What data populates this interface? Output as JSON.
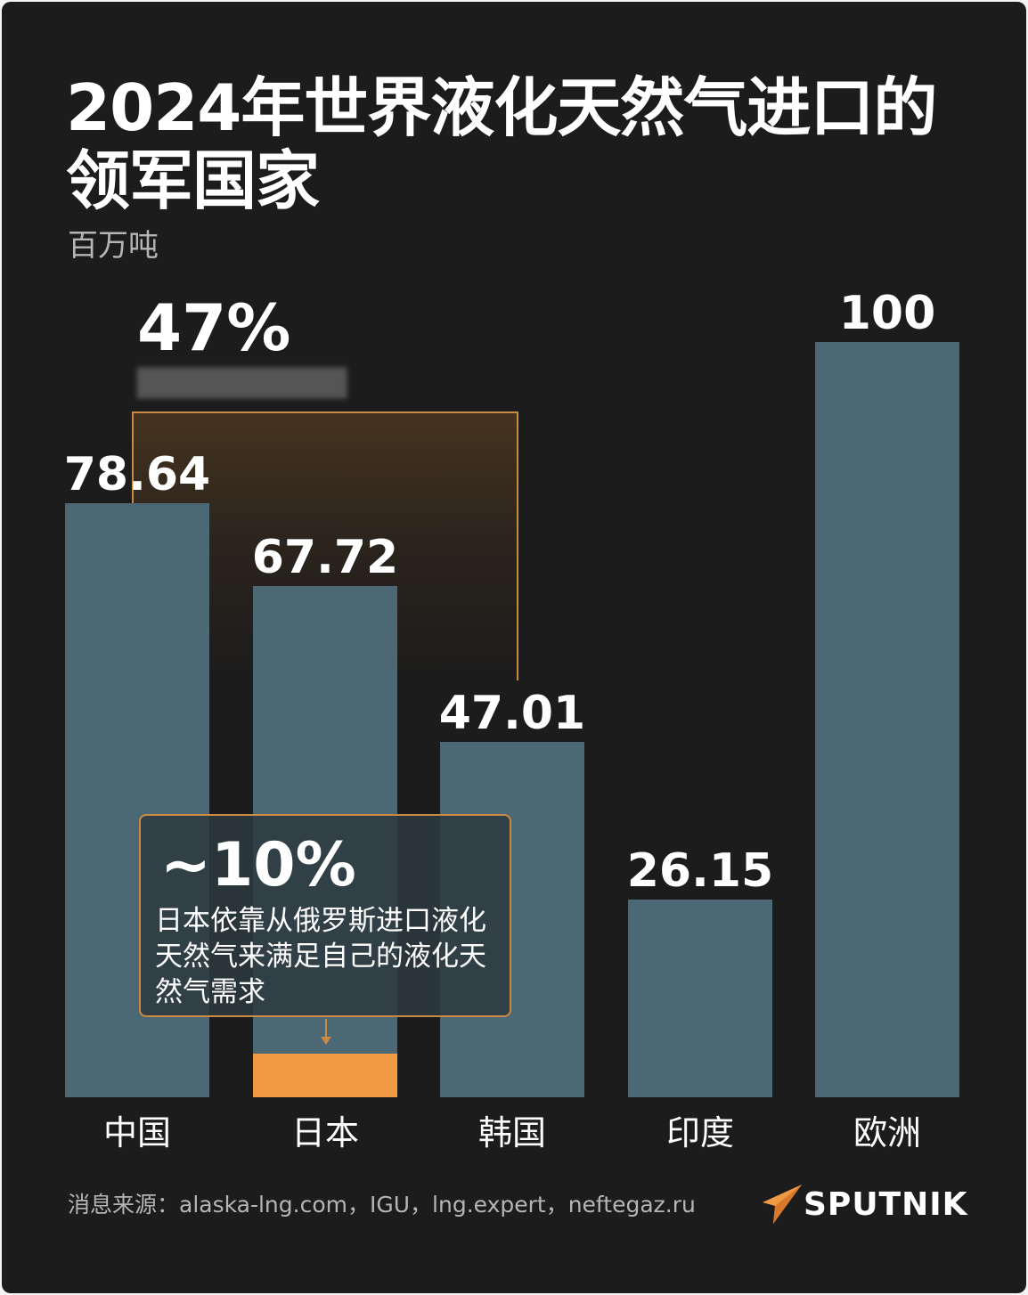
{
  "header": {
    "title": "2024年世界液化天然气进口的领军国家",
    "unit": "百万吨"
  },
  "chart_data": {
    "type": "bar",
    "title": "2024年世界液化天然气进口的领军国家",
    "ylabel": "百万吨",
    "xlabel": "",
    "categories": [
      "中国",
      "日本",
      "韩国",
      "印度",
      "欧洲"
    ],
    "values": [
      78.64,
      67.72,
      47.01,
      26.15,
      100
    ],
    "value_labels": [
      "78.64",
      "67.72",
      "47.01",
      "26.15",
      "100"
    ],
    "ylim": [
      0,
      100
    ],
    "grid": false,
    "legend": "none",
    "bar_color": "#4b6874",
    "highlight": {
      "category": "日本",
      "approx_share": 0.1,
      "color": "#f09a45"
    },
    "annotations": [
      {
        "text": "47%",
        "bracket_over": [
          "中国",
          "日本",
          "韩国"
        ],
        "accent": "#c98a45"
      },
      {
        "text": "~10%",
        "detail": "日本依靠从俄罗斯进口液化天然气来满足自己的液化天然气需求",
        "target": "日本"
      }
    ]
  },
  "annotation_47": {
    "value": "47%"
  },
  "callout": {
    "value": "~10%",
    "text": "日本依靠从俄罗斯进口液化天然气来满足自己的液化天然气需求"
  },
  "footer": {
    "source": "消息来源：alaska-lng.com，IGU，lng.expert，neftegaz.ru",
    "logo": "SPUTNIK",
    "logo_icon": "sputnik-arrow-icon"
  },
  "colors": {
    "background": "#1c1c1c",
    "bar": "#4b6874",
    "accent": "#c98a45",
    "highlight": "#f09a45"
  }
}
